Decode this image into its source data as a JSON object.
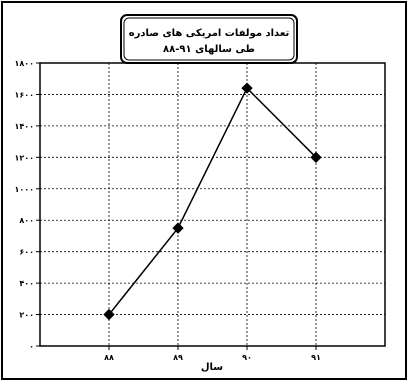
{
  "chart_data": {
    "type": "line",
    "title_line1": "تعداد مولفات امریکی های صادره",
    "title_line2": "طی سالهای ۹۱-۸۸",
    "xlabel": "سال",
    "ylabel": "",
    "categories": [
      "۸۸",
      "۸۹",
      "۹۰",
      "۹۱"
    ],
    "ylim": [
      0,
      1800
    ],
    "y_ticks": [
      0,
      200,
      400,
      600,
      800,
      1000,
      1200,
      1400,
      1600,
      1800
    ],
    "y_tick_labels": [
      "۰",
      "۲۰۰",
      "۴۰۰",
      "۶۰۰",
      "۸۰۰",
      "۱۰۰۰",
      "۱۲۰۰",
      "۱۴۰۰",
      "۱۶۰۰",
      "۱۸۰۰"
    ],
    "series": [
      {
        "values": [
          200,
          750,
          1640,
          1200
        ]
      }
    ],
    "grid": true,
    "colors": {
      "line": "#000000",
      "grid": "#000000",
      "background": "#ffffff"
    }
  }
}
